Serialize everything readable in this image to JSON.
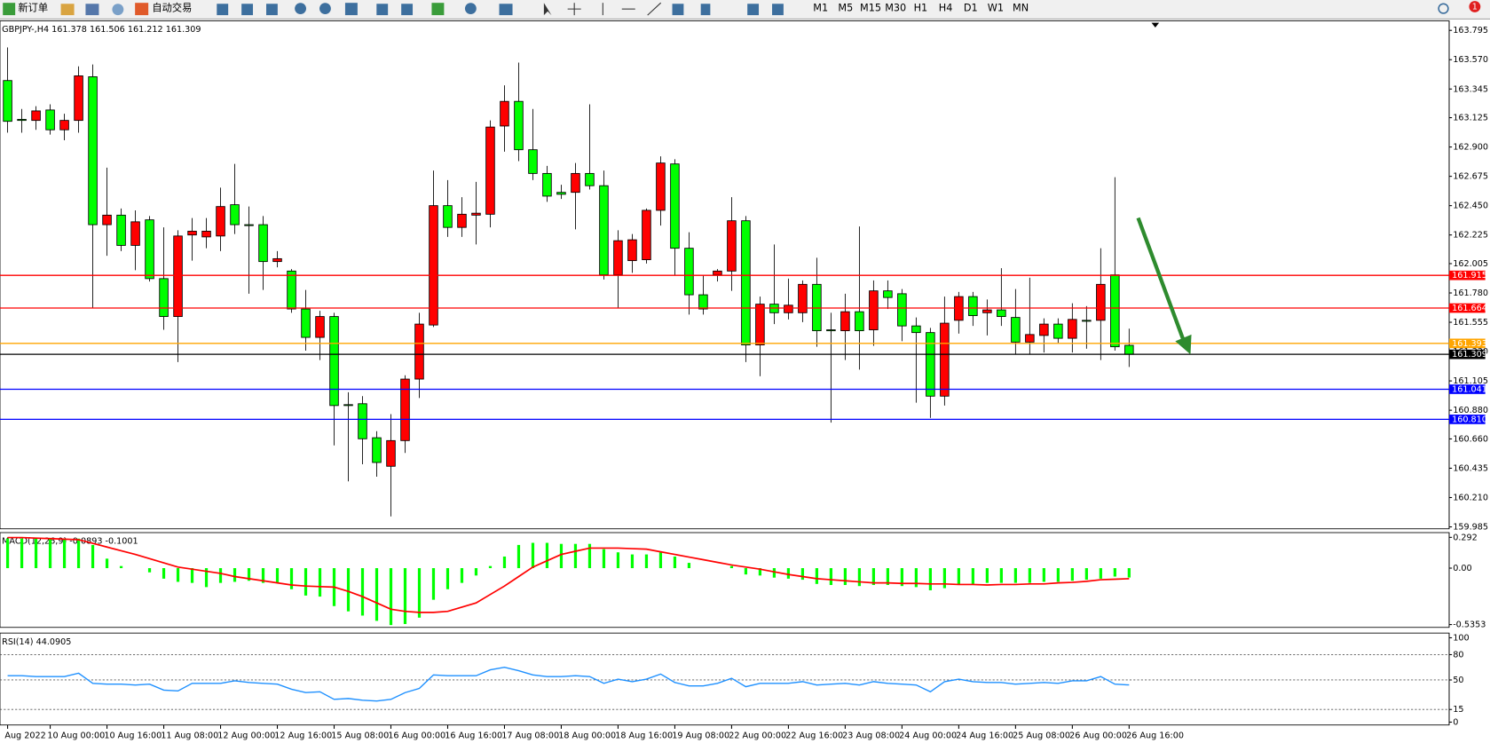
{
  "toolbar": {
    "new_order": "新订单",
    "auto_trading": "自动交易",
    "timeframes": [
      "M1",
      "M5",
      "M15",
      "M30",
      "H1",
      "H4",
      "D1",
      "W1",
      "MN"
    ],
    "badge": "1"
  },
  "chart_data": [
    {
      "type": "candlestick",
      "title": "GBPJPY-,H4  161.378 161.506 161.212 161.309",
      "categories": [
        "Aug 2022",
        null,
        null,
        "10 Aug 00:00",
        null,
        null,
        null,
        "10 Aug 16:00",
        null,
        null,
        null,
        "11 Aug 08:00",
        null,
        null,
        null,
        "12 Aug 00:00",
        null,
        null,
        null,
        "12 Aug 16:00",
        null,
        null,
        null,
        "15 Aug 08:00",
        null,
        null,
        null,
        "16 Aug 00:00",
        null,
        null,
        null,
        "16 Aug 16:00",
        null,
        null,
        null,
        "17 Aug 08:00",
        null,
        null,
        null,
        "18 Aug 00:00",
        null,
        null,
        null,
        "18 Aug 16:00",
        null,
        null,
        null,
        "19 Aug 08:00",
        null,
        null,
        null,
        "22 Aug 00:00",
        null,
        null,
        null,
        "22 Aug 16:00",
        null,
        null,
        null,
        "23 Aug 08:00",
        null,
        null,
        null,
        "24 Aug 00:00",
        null,
        null,
        null,
        "24 Aug 16:00",
        null,
        null,
        null,
        "25 Aug 08:00",
        null,
        null,
        null,
        "26 Aug 00:00",
        null,
        null,
        null,
        "26 Aug 16:00"
      ],
      "open": [
        163.41,
        163.112,
        163.104,
        163.184,
        163.032,
        163.104,
        163.439,
        162.304,
        162.377,
        162.145,
        162.341,
        161.89,
        161.599,
        162.225,
        162.21,
        162.217,
        162.457,
        162.304,
        162.304,
        162.021,
        161.948,
        161.657,
        161.439,
        161.599,
        160.923,
        160.93,
        160.669,
        160.45,
        160.647,
        161.119,
        161.534,
        162.45,
        162.283,
        162.377,
        162.384,
        163.061,
        163.25,
        162.879,
        162.697,
        162.552,
        162.552,
        162.697,
        162.603,
        161.919,
        162.028,
        162.035,
        162.414,
        162.77,
        162.123,
        161.766,
        161.919,
        161.948,
        162.334,
        161.381,
        161.694,
        161.628,
        161.628,
        161.846,
        161.497,
        161.49,
        161.636,
        161.497,
        161.796,
        161.774,
        161.527,
        161.476,
        160.988,
        161.57,
        161.752,
        161.628,
        161.65,
        161.592,
        161.403,
        161.454,
        161.541,
        161.432,
        161.57,
        161.57,
        161.919,
        161.378
      ],
      "high": [
        163.664,
        163.192,
        163.213,
        163.228,
        163.155,
        163.519,
        163.533,
        162.741,
        162.428,
        162.414,
        162.37,
        162.283,
        162.261,
        162.355,
        162.355,
        162.588,
        162.77,
        162.443,
        162.37,
        162.101,
        161.963,
        161.803,
        161.643,
        161.628,
        161.018,
        160.988,
        160.719,
        160.85,
        161.148,
        161.628,
        162.719,
        162.646,
        162.515,
        162.632,
        163.104,
        163.373,
        163.548,
        163.192,
        162.755,
        162.61,
        162.777,
        163.228,
        162.719,
        162.261,
        162.232,
        162.428,
        162.828,
        162.806,
        162.246,
        161.919,
        161.963,
        162.515,
        162.37,
        161.752,
        162.152,
        161.89,
        161.876,
        162.05,
        161.628,
        161.774,
        162.29,
        161.876,
        161.876,
        161.81,
        161.592,
        161.512,
        161.752,
        161.788,
        161.788,
        161.73,
        161.97,
        161.81,
        161.897,
        161.585,
        161.585,
        161.701,
        161.679,
        162.123,
        162.668,
        161.506
      ],
      "low": [
        163.01,
        163.01,
        163.032,
        162.995,
        162.952,
        163.01,
        161.665,
        162.065,
        162.101,
        161.955,
        161.868,
        161.497,
        161.25,
        162.028,
        162.123,
        162.101,
        162.232,
        161.774,
        161.803,
        161.977,
        161.628,
        161.337,
        161.265,
        160.61,
        160.334,
        160.465,
        160.37,
        160.065,
        160.552,
        160.974,
        161.519,
        162.21,
        162.21,
        162.152,
        162.283,
        162.864,
        162.792,
        162.646,
        162.479,
        162.501,
        162.268,
        162.574,
        161.883,
        161.665,
        161.934,
        162.006,
        162.297,
        161.919,
        161.614,
        161.614,
        161.868,
        161.796,
        161.25,
        161.141,
        161.541,
        161.577,
        161.556,
        161.367,
        160.785,
        161.265,
        161.192,
        161.374,
        161.657,
        161.41,
        160.938,
        160.821,
        160.916,
        161.468,
        161.527,
        161.454,
        161.527,
        161.308,
        161.308,
        161.323,
        161.396,
        161.323,
        161.352,
        161.265,
        161.337,
        161.212
      ],
      "close": [
        163.097,
        163.104,
        163.177,
        163.032,
        163.104,
        163.446,
        162.304,
        162.377,
        162.145,
        162.326,
        161.89,
        161.599,
        162.217,
        162.254,
        162.254,
        162.443,
        162.304,
        162.297,
        162.021,
        162.043,
        161.657,
        161.439,
        161.599,
        160.916,
        160.916,
        160.661,
        160.479,
        160.647,
        161.119,
        161.541,
        162.45,
        162.283,
        162.384,
        162.392,
        163.053,
        163.25,
        162.879,
        162.697,
        162.523,
        162.537,
        162.697,
        162.603,
        161.919,
        162.181,
        162.188,
        162.414,
        162.777,
        162.123,
        161.766,
        161.657,
        161.948,
        162.334,
        161.381,
        161.694,
        161.628,
        161.686,
        161.846,
        161.49,
        161.49,
        161.636,
        161.49,
        161.796,
        161.745,
        161.527,
        161.476,
        160.988,
        161.548,
        161.752,
        161.606,
        161.65,
        161.599,
        161.403,
        161.461,
        161.541,
        161.432,
        161.577,
        161.563,
        161.846,
        161.367,
        161.309
      ],
      "up_color": "#ff0000",
      "down_color": "#00ff00",
      "ylim": [
        159.97,
        163.868
      ],
      "yticks": [
        163.795,
        {
          "value": 163.57,
          "label": "163.570"
        },
        163.345,
        163.125,
        {
          "value": 162.9,
          "label": "162.900"
        },
        162.675,
        {
          "value": 162.45,
          "label": "162.450"
        },
        162.225,
        162.005,
        {
          "value": 161.78,
          "label": "161.780"
        },
        161.555,
        {
          "value": 161.33,
          "label": "161.330"
        },
        161.105,
        {
          "value": 160.88,
          "label": "160.880"
        },
        {
          "value": 160.66,
          "label": "160.660"
        },
        160.435,
        {
          "value": 160.21,
          "label": "160.210"
        },
        159.985
      ],
      "levels": [
        {
          "value": 161.915,
          "color": "#ff0000"
        },
        {
          "value": 161.664,
          "color": "#ff0000"
        },
        {
          "value": 161.393,
          "color": "#ffa500"
        },
        {
          "value": 161.309,
          "color": "#000000"
        },
        {
          "value": 161.041,
          "color": "#0000ff"
        },
        {
          "value": 160.81,
          "label": "160.810",
          "color": "#0000ff"
        }
      ]
    },
    {
      "type": "macd",
      "title": "MACD(12,26,9) -0.0893 -0.1001",
      "values": [
        0.28,
        0.28,
        0.29,
        0.28,
        0.28,
        0.28,
        0.22,
        0.09,
        0.02,
        0.0,
        -0.04,
        -0.1,
        -0.13,
        -0.14,
        -0.18,
        -0.14,
        -0.13,
        -0.12,
        -0.14,
        -0.14,
        -0.2,
        -0.26,
        -0.27,
        -0.36,
        -0.41,
        -0.45,
        -0.5,
        -0.54,
        -0.53,
        -0.47,
        -0.3,
        -0.2,
        -0.14,
        -0.07,
        0.02,
        0.11,
        0.22,
        0.24,
        0.24,
        0.23,
        0.23,
        0.23,
        0.18,
        0.15,
        0.13,
        0.13,
        0.15,
        0.11,
        0.05,
        0.0,
        0.0,
        0.02,
        -0.06,
        -0.07,
        -0.09,
        -0.1,
        -0.11,
        -0.15,
        -0.16,
        -0.16,
        -0.17,
        -0.16,
        -0.16,
        -0.17,
        -0.18,
        -0.21,
        -0.19,
        -0.16,
        -0.15,
        -0.14,
        -0.14,
        -0.14,
        -0.14,
        -0.13,
        -0.13,
        -0.12,
        -0.11,
        -0.1,
        -0.08,
        -0.0893
      ],
      "signal": [
        0.29,
        0.29,
        0.285,
        0.28,
        0.275,
        0.27,
        0.235,
        0.2,
        0.165,
        0.13,
        0.09,
        0.05,
        0.01,
        -0.01,
        -0.03,
        -0.05,
        -0.08,
        -0.1,
        -0.12,
        -0.14,
        -0.16,
        -0.17,
        -0.175,
        -0.18,
        -0.22,
        -0.27,
        -0.33,
        -0.39,
        -0.41,
        -0.42,
        -0.42,
        -0.41,
        -0.37,
        -0.33,
        -0.25,
        -0.17,
        -0.08,
        0.01,
        0.07,
        0.13,
        0.16,
        0.19,
        0.19,
        0.19,
        0.185,
        0.18,
        0.155,
        0.13,
        0.105,
        0.08,
        0.055,
        0.03,
        0.01,
        -0.01,
        -0.035,
        -0.06,
        -0.08,
        -0.1,
        -0.11,
        -0.12,
        -0.13,
        -0.14,
        -0.14,
        -0.145,
        -0.145,
        -0.15,
        -0.15,
        -0.155,
        -0.155,
        -0.16,
        -0.155,
        -0.155,
        -0.15,
        -0.15,
        -0.14,
        -0.135,
        -0.125,
        -0.11,
        -0.105,
        -0.1001
      ],
      "color": "#00ff00",
      "signal_color": "#ff0000",
      "ylim": [
        -0.562,
        0.337
      ],
      "yticks": [
        0.292,
        {
          "value": 0,
          "label": "0.00"
        },
        -0.5353
      ]
    },
    {
      "type": "line",
      "title": "RSI(14) 44.0905",
      "values": [
        55,
        55,
        54,
        54,
        54,
        58,
        46,
        45,
        45,
        44,
        45,
        38,
        37,
        46,
        46,
        46,
        49,
        47,
        46,
        45,
        39,
        35,
        36,
        27,
        28,
        26,
        25,
        27,
        35,
        40,
        56,
        55,
        55,
        55,
        62,
        65,
        61,
        56,
        54,
        54,
        55,
        54,
        46,
        51,
        48,
        51,
        57,
        47,
        43,
        43,
        46,
        52,
        42,
        46,
        46,
        46,
        48,
        44,
        45,
        46,
        44,
        48,
        46,
        45,
        44,
        36,
        48,
        51,
        48,
        47,
        47,
        45,
        46,
        47,
        46,
        49,
        49,
        54,
        45,
        44.0905
      ],
      "color": "#1e90ff",
      "ylim": [
        -3.4,
        105.6
      ],
      "yticks": [
        100,
        80,
        50,
        15,
        0
      ],
      "dashed_levels": [
        80,
        50,
        15
      ]
    }
  ]
}
